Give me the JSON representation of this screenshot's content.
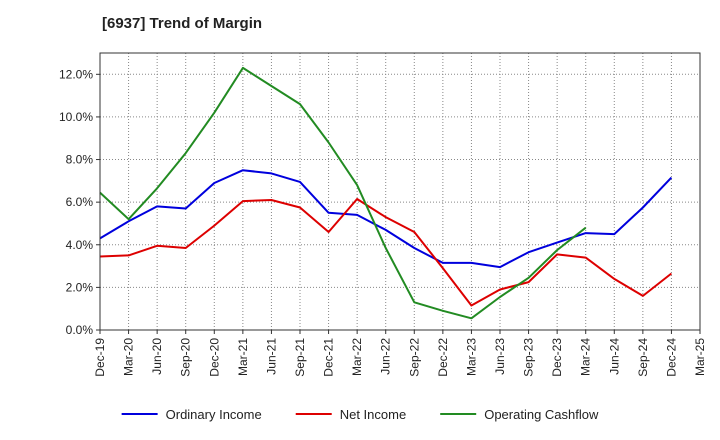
{
  "chart_data": {
    "type": "line",
    "title": "[6937]  Trend of Margin",
    "xlabel": "",
    "ylabel": "",
    "categories": [
      "Dec-19",
      "Mar-20",
      "Jun-20",
      "Sep-20",
      "Dec-20",
      "Mar-21",
      "Jun-21",
      "Sep-21",
      "Dec-21",
      "Mar-22",
      "Jun-22",
      "Sep-22",
      "Dec-22",
      "Mar-23",
      "Jun-23",
      "Sep-23",
      "Dec-23",
      "Mar-24",
      "Jun-24",
      "Sep-24",
      "Dec-24",
      "Mar-25"
    ],
    "ylim": [
      0,
      13
    ],
    "yticks": [
      0,
      2,
      4,
      6,
      8,
      10,
      12
    ],
    "ytick_labels": [
      "0.0%",
      "2.0%",
      "4.0%",
      "6.0%",
      "8.0%",
      "10.0%",
      "12.0%"
    ],
    "grid": true,
    "legend_position": "bottom",
    "series": [
      {
        "name": "Ordinary Income",
        "color": "#0000dd",
        "values": [
          4.3,
          5.1,
          5.8,
          5.7,
          6.9,
          7.5,
          7.35,
          6.95,
          5.5,
          5.4,
          4.7,
          3.85,
          3.15,
          3.15,
          2.95,
          3.65,
          4.1,
          4.55,
          4.5,
          5.75,
          7.15,
          null
        ]
      },
      {
        "name": "Net Income",
        "color": "#dd0000",
        "values": [
          3.45,
          3.5,
          3.95,
          3.85,
          4.9,
          6.05,
          6.1,
          5.75,
          4.6,
          6.15,
          5.3,
          4.6,
          2.9,
          1.15,
          1.9,
          2.25,
          3.55,
          3.4,
          2.4,
          1.6,
          2.65,
          null
        ]
      },
      {
        "name": "Operating Cashflow",
        "color": "#228B22",
        "values": [
          6.45,
          5.2,
          6.65,
          8.3,
          10.2,
          12.3,
          11.45,
          10.6,
          8.8,
          6.8,
          3.85,
          1.3,
          0.9,
          0.55,
          1.55,
          2.45,
          3.75,
          4.8,
          null,
          null,
          null,
          null
        ]
      }
    ]
  }
}
